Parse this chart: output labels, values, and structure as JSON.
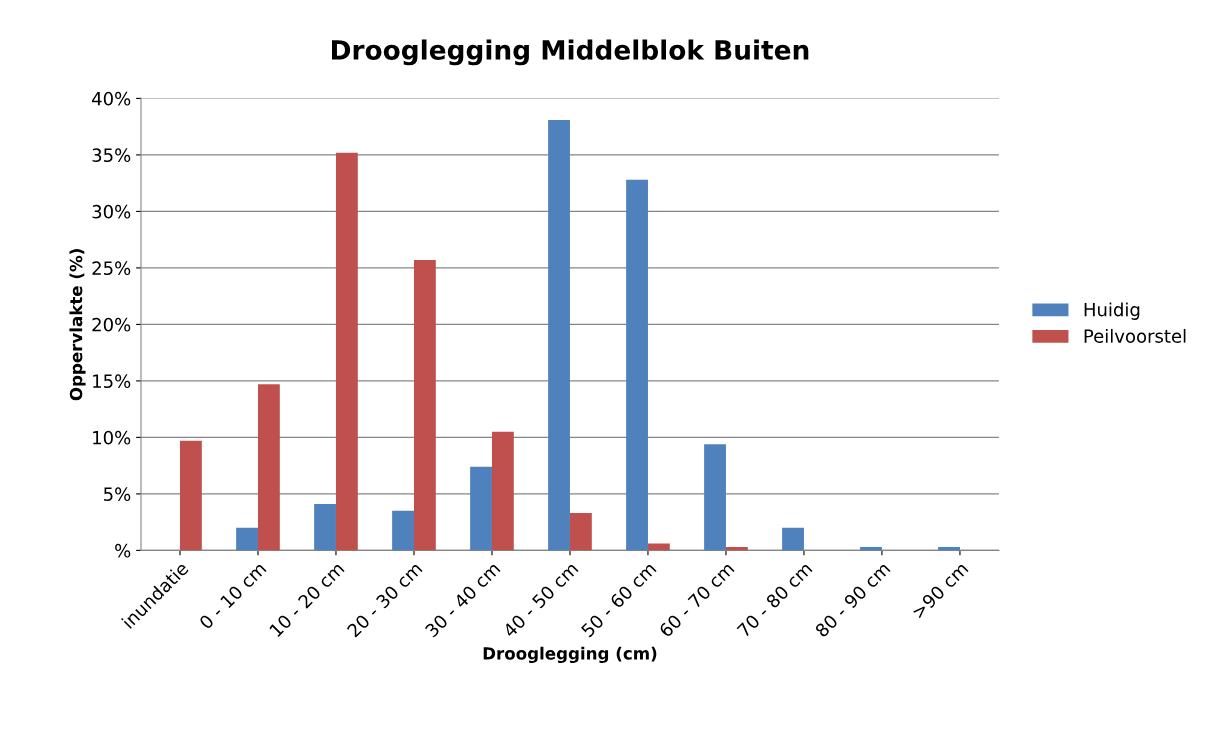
{
  "chart_data": {
    "type": "bar",
    "title": "Drooglegging Middelblok Buiten",
    "xlabel": "Drooglegging (cm)",
    "ylabel": "Oppervlakte (%)",
    "categories": [
      "inundatie",
      "0 - 10 cm",
      "10 - 20 cm",
      "20 - 30 cm",
      "30 - 40 cm",
      "40 - 50 cm",
      "50 - 60 cm",
      "60 - 70 cm",
      "70 - 80 cm",
      "80 - 90 cm",
      ">90 cm"
    ],
    "series": [
      {
        "name": "Huidig",
        "color": "#4f81bd",
        "values": [
          0,
          2.0,
          4.1,
          3.5,
          7.4,
          38.1,
          32.8,
          9.4,
          2.0,
          0.3,
          0.3
        ]
      },
      {
        "name": "Peilvoorstel",
        "color": "#c0504d",
        "values": [
          9.7,
          14.7,
          35.2,
          25.7,
          10.5,
          3.3,
          0.6,
          0.3,
          0,
          0,
          0
        ]
      }
    ],
    "ylim": [
      0,
      40
    ],
    "yticks": [
      {
        "value": 0,
        "label": "%"
      },
      {
        "value": 5,
        "label": "5%"
      },
      {
        "value": 10,
        "label": "10%"
      },
      {
        "value": 15,
        "label": "15%"
      },
      {
        "value": 20,
        "label": "20%"
      },
      {
        "value": 25,
        "label": "25%"
      },
      {
        "value": 30,
        "label": "30%"
      },
      {
        "value": 35,
        "label": "35%"
      },
      {
        "value": 40,
        "label": "40%"
      }
    ],
    "grid": "y",
    "legend": "right"
  }
}
